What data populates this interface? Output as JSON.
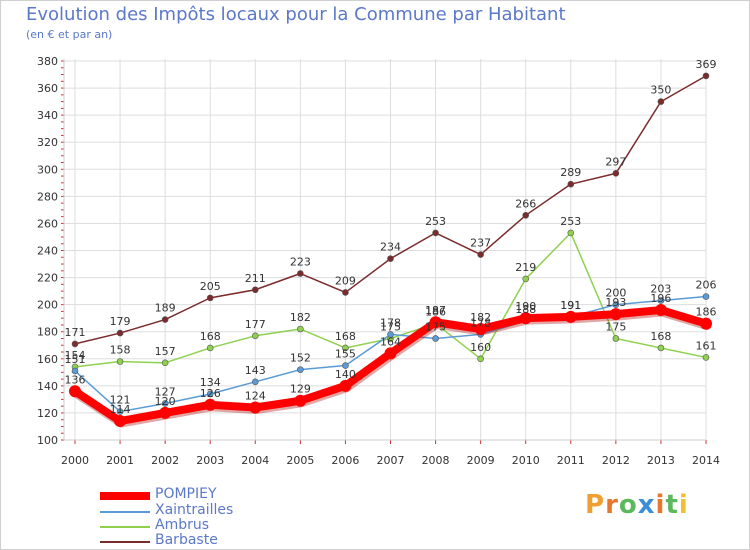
{
  "title": "Evolution des Impôts locaux pour la Commune par Habitant",
  "subtitle": "(en € et par an)",
  "logo": "Proxiti",
  "chart_data": {
    "type": "line",
    "title": "Evolution des Impôts locaux pour la Commune par Habitant",
    "subtitle": "(en € et par an)",
    "xlabel": "",
    "ylabel": "",
    "x": [
      2000,
      2001,
      2002,
      2003,
      2004,
      2005,
      2006,
      2007,
      2008,
      2009,
      2010,
      2011,
      2012,
      2013,
      2014
    ],
    "ylim": [
      100,
      380
    ],
    "yticks": [
      100,
      120,
      140,
      160,
      180,
      200,
      220,
      240,
      260,
      280,
      300,
      320,
      340,
      360,
      380
    ],
    "grid": true,
    "legend_position": "bottom-left",
    "series": [
      {
        "name": "POMPIEY",
        "color": "#ff0000",
        "values": [
          136,
          114,
          120,
          126,
          124,
          129,
          140,
          164,
          187,
          182,
          190,
          191,
          193,
          196,
          186
        ],
        "labels": [
          "136",
          "114",
          "120",
          "126",
          "124",
          "129",
          "140",
          "164",
          "187",
          "182",
          "190",
          "191",
          "193",
          "196",
          "186"
        ]
      },
      {
        "name": "Xaintrailles",
        "color": "#5b9bd5",
        "values": [
          151,
          121,
          127,
          134,
          143,
          152,
          155,
          178,
          175,
          178,
          188,
          191,
          200,
          203,
          206
        ],
        "labels": [
          "151",
          "121",
          "127",
          "134",
          "143",
          "152",
          "155",
          "178",
          "175",
          "178",
          "188",
          "191",
          "200",
          "203",
          "206"
        ]
      },
      {
        "name": "Ambrus",
        "color": "#8fd14f",
        "values": [
          154,
          158,
          157,
          168,
          177,
          182,
          168,
          175,
          186,
          160,
          219,
          253,
          175,
          168,
          161
        ],
        "labels": [
          "154",
          "158",
          "157",
          "168",
          "177",
          "182",
          "168",
          "175",
          "186",
          "160",
          "219",
          "253",
          "175",
          "168",
          "161"
        ]
      },
      {
        "name": "Barbaste",
        "color": "#7b2b2b",
        "values": [
          171,
          179,
          189,
          205,
          211,
          223,
          209,
          234,
          253,
          237,
          266,
          289,
          297,
          350,
          369
        ],
        "labels": [
          "171",
          "179",
          "189",
          "205",
          "211",
          "223",
          "209",
          "234",
          "253",
          "237",
          "266",
          "289",
          "297",
          "350",
          "369"
        ]
      }
    ]
  }
}
